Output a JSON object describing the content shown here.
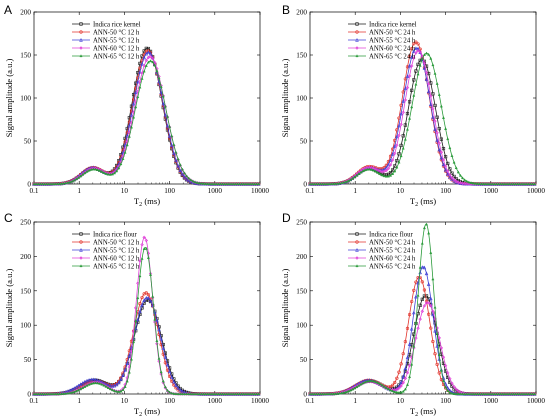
{
  "colors": {
    "s0": "#1a1a1a",
    "s1": "#e2332b",
    "s2": "#3f3fd6",
    "s3": "#e040d8",
    "s4": "#2a9a3a"
  },
  "chart_data": [
    {
      "panel": "A",
      "type": "line",
      "xscale": "log",
      "xlim": [
        0.1,
        10000
      ],
      "xticks": [
        "0.1",
        "1",
        "10",
        "100",
        "1000",
        "10000"
      ],
      "ylim": [
        0,
        200
      ],
      "yticks": [
        "0",
        "50",
        "100",
        "150",
        "200"
      ],
      "xlabel": "T2 (ms)",
      "ylabel": "Signal amplitude (a.u.)",
      "series": [
        {
          "name": "Indica rice kernel",
          "peaks": [
            {
              "t": 2.0,
              "a": 18,
              "w": 0.26
            },
            {
              "t": 32,
              "a": 158,
              "w": 0.33
            }
          ]
        },
        {
          "name": "ANN-50 °C 12 h",
          "peaks": [
            {
              "t": 2.0,
              "a": 19,
              "w": 0.26
            },
            {
              "t": 33,
              "a": 155,
              "w": 0.33
            }
          ]
        },
        {
          "name": "ANN-55 °C 12 h",
          "peaks": [
            {
              "t": 2.0,
              "a": 19,
              "w": 0.26
            },
            {
              "t": 34,
              "a": 153,
              "w": 0.33
            }
          ]
        },
        {
          "name": "ANN-60 °C 12 h",
          "peaks": [
            {
              "t": 2.1,
              "a": 18,
              "w": 0.26
            },
            {
              "t": 37,
              "a": 148,
              "w": 0.34
            }
          ]
        },
        {
          "name": "ANN-65 °C 12 h",
          "peaks": [
            {
              "t": 2.1,
              "a": 17,
              "w": 0.26
            },
            {
              "t": 38,
              "a": 143,
              "w": 0.34
            }
          ]
        }
      ]
    },
    {
      "panel": "B",
      "type": "line",
      "xscale": "log",
      "xlim": [
        0.1,
        10000
      ],
      "xticks": [
        "0.1",
        "1",
        "10",
        "100",
        "1000",
        "10000"
      ],
      "ylim": [
        0,
        200
      ],
      "yticks": [
        "0",
        "50",
        "100",
        "150",
        "200"
      ],
      "xlabel": "T2 (ms)",
      "ylabel": "Signal amplitude (a.u.)",
      "series": [
        {
          "name": "Indica rice kernel",
          "peaks": [
            {
              "t": 2.0,
              "a": 18,
              "w": 0.26
            },
            {
              "t": 30,
              "a": 145,
              "w": 0.3
            }
          ]
        },
        {
          "name": "ANN-50 °C 24 h",
          "peaks": [
            {
              "t": 2.0,
              "a": 20,
              "w": 0.26
            },
            {
              "t": 22,
              "a": 165,
              "w": 0.3
            }
          ]
        },
        {
          "name": "ANN-55 °C 24 h",
          "peaks": [
            {
              "t": 2.0,
              "a": 19,
              "w": 0.26
            },
            {
              "t": 23,
              "a": 158,
              "w": 0.3
            }
          ]
        },
        {
          "name": "ANN-60 °C 24 h",
          "peaks": [
            {
              "t": 2.0,
              "a": 19,
              "w": 0.26
            },
            {
              "t": 25,
              "a": 155,
              "w": 0.3
            }
          ]
        },
        {
          "name": "ANN-65 °C 24 h",
          "peaks": [
            {
              "t": 2.0,
              "a": 17,
              "w": 0.26
            },
            {
              "t": 38,
              "a": 152,
              "w": 0.32
            }
          ]
        }
      ]
    },
    {
      "panel": "C",
      "type": "line",
      "xscale": "log",
      "xlim": [
        0.1,
        10000
      ],
      "xticks": [
        "0.1",
        "1",
        "10",
        "100",
        "1000",
        "10000"
      ],
      "ylim": [
        0,
        250
      ],
      "yticks": [
        "0",
        "50",
        "100",
        "150",
        "200",
        "250"
      ],
      "xlabel": "T2 (ms)",
      "ylabel": "Signal amplitude (a.u.)",
      "series": [
        {
          "name": "Indica rice flour",
          "peaks": [
            {
              "t": 2.2,
              "a": 20,
              "w": 0.3
            },
            {
              "t": 33,
              "a": 137,
              "w": 0.3
            }
          ]
        },
        {
          "name": "ANN-50 °C 12 h",
          "peaks": [
            {
              "t": 2.2,
              "a": 19,
              "w": 0.3
            },
            {
              "t": 30,
              "a": 147,
              "w": 0.28
            }
          ]
        },
        {
          "name": "ANN-55 °C 12 h",
          "peaks": [
            {
              "t": 2.0,
              "a": 21,
              "w": 0.3
            },
            {
              "t": 32,
              "a": 140,
              "w": 0.29
            }
          ]
        },
        {
          "name": "ANN-60 °C 12 h",
          "peaks": [
            {
              "t": 2.3,
              "a": 17,
              "w": 0.26
            },
            {
              "t": 28,
              "a": 228,
              "w": 0.18
            }
          ]
        },
        {
          "name": "ANN-65 °C 12 h",
          "peaks": [
            {
              "t": 2.3,
              "a": 16,
              "w": 0.26
            },
            {
              "t": 29,
              "a": 213,
              "w": 0.18
            }
          ]
        }
      ]
    },
    {
      "panel": "D",
      "type": "line",
      "xscale": "log",
      "xlim": [
        0.1,
        10000
      ],
      "xticks": [
        "0.1",
        "1",
        "10",
        "100",
        "1000",
        "10000"
      ],
      "ylim": [
        0,
        250
      ],
      "yticks": [
        "0",
        "50",
        "100",
        "150",
        "200",
        "250"
      ],
      "xlabel": "T2 (ms)",
      "ylabel": "Signal amplitude (a.u.)",
      "series": [
        {
          "name": "Indica rice flour",
          "peaks": [
            {
              "t": 2.1,
              "a": 19,
              "w": 0.3
            },
            {
              "t": 36,
              "a": 143,
              "w": 0.26
            }
          ]
        },
        {
          "name": "ANN-50 °C 24 h",
          "peaks": [
            {
              "t": 2.0,
              "a": 20,
              "w": 0.3
            },
            {
              "t": 26,
              "a": 170,
              "w": 0.24
            }
          ]
        },
        {
          "name": "ANN-55 °C 24 h",
          "peaks": [
            {
              "t": 2.0,
              "a": 20,
              "w": 0.3
            },
            {
              "t": 32,
              "a": 185,
              "w": 0.22
            }
          ]
        },
        {
          "name": "ANN-60 °C 24 h",
          "peaks": [
            {
              "t": 2.1,
              "a": 18,
              "w": 0.3
            },
            {
              "t": 40,
              "a": 133,
              "w": 0.26
            }
          ]
        },
        {
          "name": "ANN-65 °C 24 h",
          "peaks": [
            {
              "t": 2.2,
              "a": 19,
              "w": 0.28
            },
            {
              "t": 37,
              "a": 247,
              "w": 0.17
            }
          ]
        }
      ]
    }
  ]
}
